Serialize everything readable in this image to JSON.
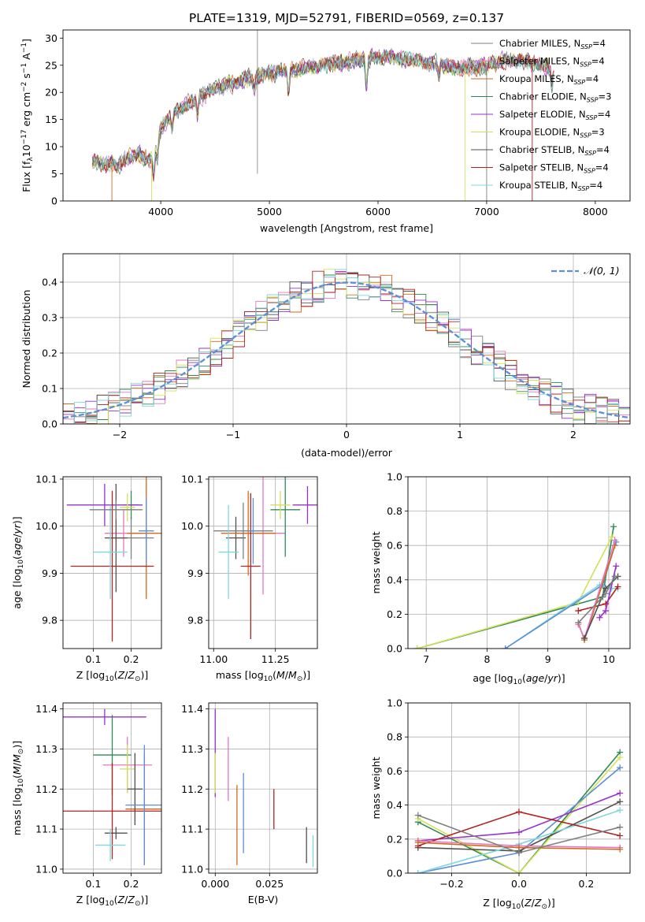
{
  "title": "PLATE=1319, MJD=52791, FIBERID=0569, z=0.137",
  "colors": {
    "chabrier_miles": "#7f7f7f",
    "salpeter_miles": "#e377c2",
    "kroupa_miles": "#d2691e",
    "chabrier_elodie": "#2e8b57",
    "salpeter_elodie": "#9932cc",
    "kroupa_elodie": "#d4e157",
    "chabrier_stelib": "#505050",
    "salpeter_stelib": "#b22222",
    "kroupa_stelib": "#7fd7dc",
    "normal": "#5b8fd9"
  },
  "chart_data": [
    {
      "type": "line",
      "xlabel": "wavelength [Angstrom, rest frame]",
      "ylabel": "Flux [f_λ 10^-17 erg cm^-2 s^-1 A^-1]",
      "ylabel_parts": [
        "Flux [f",
        "λ",
        "10",
        "−17",
        " erg cm",
        "−2",
        " s",
        "−1",
        " A",
        "−1",
        "]"
      ],
      "xlim": [
        3100,
        8320
      ],
      "ylim": [
        0,
        31.5
      ],
      "xticks": [
        4000,
        5000,
        6000,
        7000,
        8000
      ],
      "yticks": [
        0,
        5,
        10,
        15,
        20,
        25,
        30
      ],
      "legend_position": "right",
      "legend": [
        {
          "label": "Chabrier MILES, N",
          "sub": "SSP",
          "suffix": "=4",
          "color": "#7f7f7f"
        },
        {
          "label": "Salpeter MILES, N",
          "sub": "SSP",
          "suffix": "=4",
          "color": "#e377c2"
        },
        {
          "label": "Kroupa MILES, N",
          "sub": "SSP",
          "suffix": "=4",
          "color": "#d2691e"
        },
        {
          "label": "Chabrier ELODIE, N",
          "sub": "SSP",
          "suffix": "=3",
          "color": "#2e8b57"
        },
        {
          "label": "Salpeter ELODIE, N",
          "sub": "SSP",
          "suffix": "=4",
          "color": "#9932cc"
        },
        {
          "label": "Kroupa ELODIE, N",
          "sub": "SSP",
          "suffix": "=3",
          "color": "#d4e157"
        },
        {
          "label": "Chabrier STELIB, N",
          "sub": "SSP",
          "suffix": "=4",
          "color": "#505050"
        },
        {
          "label": "Salpeter STELIB, N",
          "sub": "SSP",
          "suffix": "=4",
          "color": "#b22222"
        },
        {
          "label": "Kroupa STELIB, N",
          "sub": "SSP",
          "suffix": "=4",
          "color": "#7fd7dc"
        }
      ],
      "continuum": {
        "x": [
          3370,
          3500,
          3600,
          3700,
          3800,
          3900,
          3950,
          4000,
          4100,
          4300,
          4500,
          4700,
          4900,
          5100,
          5300,
          5500,
          5800,
          6000,
          6300,
          6600,
          6800,
          7000,
          7200,
          7400,
          7600
        ],
        "y": [
          7.5,
          6.8,
          6.5,
          8,
          8.5,
          7.5,
          9.5,
          13.5,
          16,
          18.5,
          20.5,
          22,
          23,
          23.5,
          24.5,
          25,
          26,
          26.5,
          26,
          25,
          24.5,
          25,
          26,
          25.5,
          24.5
        ]
      }
    },
    {
      "type": "bar",
      "xlabel": "(data-model)/error",
      "ylabel": "Normed distribution",
      "xlim": [
        -2.5,
        2.5
      ],
      "ylim": [
        0,
        0.48
      ],
      "xticks": [
        -2,
        -1,
        0,
        1,
        2
      ],
      "yticks": [
        0.0,
        0.1,
        0.2,
        0.3,
        0.4
      ],
      "legend": "𝒩(0, 1)",
      "legend_position": "top-right",
      "bin_edges": [
        -2.5,
        -2.4,
        -2.3,
        -2.2,
        -2.1,
        -2.0,
        -1.9,
        -1.8,
        -1.7,
        -1.6,
        -1.5,
        -1.4,
        -1.3,
        -1.2,
        -1.1,
        -1.0,
        -0.9,
        -0.8,
        -0.7,
        -0.6,
        -0.5,
        -0.4,
        -0.3,
        -0.2,
        -0.1,
        0.0,
        0.1,
        0.2,
        0.3,
        0.4,
        0.5,
        0.6,
        0.7,
        0.8,
        0.9,
        1.0,
        1.1,
        1.2,
        1.3,
        1.4,
        1.5,
        1.6,
        1.7,
        1.8,
        1.9,
        2.0,
        2.1,
        2.2,
        2.3,
        2.4,
        2.5
      ],
      "normal_curve": {
        "mean": 0,
        "sigma": 1
      }
    },
    {
      "type": "scatter",
      "xlabel": "Z [log10(Z/Z⊙)]",
      "ylabel": "age [log10(age/yr)]",
      "xlim": [
        0.02,
        0.28
      ],
      "ylim": [
        9.74,
        10.105
      ],
      "xticks": [
        0.1,
        0.2
      ],
      "yticks": [
        9.8,
        9.9,
        10.0,
        10.1
      ],
      "points": [
        {
          "x": 0.2,
          "y": 9.975,
          "xerr": 0.06,
          "yerr": 0.045,
          "color": "#7f7f7f"
        },
        {
          "x": 0.18,
          "y": 9.985,
          "xerr": 0.05,
          "yerr": 0.05,
          "color": "#e377c2"
        },
        {
          "x": 0.24,
          "y": 9.985,
          "xerr": 0.05,
          "yerr": 0.14,
          "color": "#d2691e"
        },
        {
          "x": 0.2,
          "y": 10.045,
          "xerr": 0.02,
          "yerr": 0.03,
          "color": "#2e8b57"
        },
        {
          "x": 0.13,
          "y": 10.045,
          "xerr": 0.1,
          "yerr": 0.045,
          "color": "#9932cc"
        },
        {
          "x": 0.19,
          "y": 10.04,
          "xerr": 0.02,
          "yerr": 0.03,
          "color": "#d4e157"
        },
        {
          "x": 0.16,
          "y": 9.975,
          "xerr": 0.03,
          "yerr": 0.115,
          "color": "#505050"
        },
        {
          "x": 0.15,
          "y": 9.915,
          "xerr": 0.11,
          "yerr": 0.16,
          "color": "#b22222"
        },
        {
          "x": 0.145,
          "y": 9.945,
          "xerr": 0.045,
          "yerr": 0.1,
          "color": "#7fd7dc"
        },
        {
          "x": 0.24,
          "y": 9.99,
          "xerr": 0.02,
          "yerr": 0.07,
          "color": "#5b8fd9"
        },
        {
          "x": 0.16,
          "y": 10.035,
          "xerr": 0.07,
          "yerr": 0.02,
          "color": "#7f7f7f"
        }
      ]
    },
    {
      "type": "scatter",
      "xlabel": "mass [log10(M/M⊙)]",
      "ylabel": "",
      "xlim": [
        10.98,
        11.42
      ],
      "ylim": [
        9.74,
        10.105
      ],
      "xticks": [
        11.0,
        11.25
      ],
      "yticks": [
        9.8,
        9.9,
        10.0,
        10.1
      ],
      "points": [
        {
          "x": 11.09,
          "y": 9.975,
          "xerr": 0.04,
          "yerr": 0.045,
          "color": "#505050"
        },
        {
          "x": 11.2,
          "y": 9.985,
          "xerr": 0.09,
          "yerr": 0.13,
          "color": "#e377c2"
        },
        {
          "x": 11.14,
          "y": 9.985,
          "xerr": 0.11,
          "yerr": 0.09,
          "color": "#d2691e"
        },
        {
          "x": 11.29,
          "y": 10.035,
          "xerr": 0.06,
          "yerr": 0.1,
          "color": "#2e8b57"
        },
        {
          "x": 11.38,
          "y": 10.045,
          "xerr": 0.06,
          "yerr": 0.04,
          "color": "#9932cc"
        },
        {
          "x": 11.27,
          "y": 10.045,
          "xerr": 0.04,
          "yerr": 0.03,
          "color": "#d4e157"
        },
        {
          "x": 11.12,
          "y": 9.99,
          "xerr": 0.12,
          "yerr": 0.06,
          "color": "#7f7f7f"
        },
        {
          "x": 11.15,
          "y": 9.915,
          "xerr": 0.04,
          "yerr": 0.155,
          "color": "#b22222"
        },
        {
          "x": 11.06,
          "y": 9.945,
          "xerr": 0.04,
          "yerr": 0.1,
          "color": "#7fd7dc"
        },
        {
          "x": 11.16,
          "y": 9.99,
          "xerr": 0.02,
          "yerr": 0.07,
          "color": "#5b8fd9"
        }
      ]
    },
    {
      "type": "line",
      "xlabel": "age [log10(age/yr)]",
      "ylabel": "mass weight",
      "xlim": [
        6.7,
        10.35
      ],
      "ylim": [
        0,
        1.0
      ],
      "xticks": [
        7,
        8,
        9,
        10
      ],
      "yticks": [
        0.0,
        0.2,
        0.4,
        0.6,
        0.8,
        1.0
      ],
      "series": [
        {
          "color": "#2e8b57",
          "points": [
            [
              6.85,
              0.0
            ],
            [
              9.9,
              0.3
            ],
            [
              10.08,
              0.71
            ]
          ]
        },
        {
          "color": "#d4e157",
          "points": [
            [
              6.85,
              0.0
            ],
            [
              9.5,
              0.27
            ],
            [
              10.05,
              0.65
            ]
          ]
        },
        {
          "color": "#7fd7dc",
          "points": [
            [
              8.3,
              0.0
            ],
            [
              9.85,
              0.37
            ],
            [
              10.05,
              0.35
            ],
            [
              10.15,
              0.35
            ]
          ]
        },
        {
          "color": "#5b8fd9",
          "points": [
            [
              8.3,
              0.0
            ],
            [
              9.9,
              0.37
            ],
            [
              10.12,
              0.62
            ]
          ]
        },
        {
          "color": "#b22222",
          "points": [
            [
              9.5,
              0.22
            ],
            [
              9.95,
              0.26
            ],
            [
              10.15,
              0.36
            ]
          ]
        },
        {
          "color": "#d2691e",
          "points": [
            [
              9.5,
              0.15
            ],
            [
              9.6,
              0.05
            ],
            [
              10.1,
              0.6
            ]
          ]
        },
        {
          "color": "#e377c2",
          "points": [
            [
              9.5,
              0.14
            ],
            [
              9.6,
              0.06
            ],
            [
              10.1,
              0.63
            ]
          ]
        },
        {
          "color": "#9932cc",
          "points": [
            [
              9.85,
              0.18
            ],
            [
              9.95,
              0.22
            ],
            [
              10.12,
              0.48
            ]
          ]
        },
        {
          "color": "#505050",
          "points": [
            [
              9.6,
              0.06
            ],
            [
              9.95,
              0.35
            ],
            [
              10.15,
              0.42
            ]
          ]
        },
        {
          "color": "#7f7f7f",
          "points": [
            [
              9.5,
              0.15
            ],
            [
              9.95,
              0.32
            ],
            [
              10.1,
              0.42
            ]
          ]
        }
      ]
    },
    {
      "type": "scatter",
      "xlabel": "Z [log10(Z/Z⊙)]",
      "ylabel": "mass [log10(M/M⊙)]",
      "xlim": [
        0.02,
        0.28
      ],
      "ylim": [
        10.99,
        11.415
      ],
      "xticks": [
        0.1,
        0.2
      ],
      "yticks": [
        11.0,
        11.1,
        11.2,
        11.3,
        11.4
      ],
      "points": [
        {
          "x": 0.16,
          "y": 11.09,
          "xerr": 0.03,
          "yerr": 0.015,
          "color": "#505050"
        },
        {
          "x": 0.19,
          "y": 11.26,
          "xerr": 0.065,
          "yerr": 0.07,
          "color": "#e377c2"
        },
        {
          "x": 0.235,
          "y": 11.15,
          "xerr": 0.05,
          "yerr": 0.14,
          "color": "#d2691e"
        },
        {
          "x": 0.15,
          "y": 11.285,
          "xerr": 0.05,
          "yerr": 0.1,
          "color": "#2e8b57"
        },
        {
          "x": 0.13,
          "y": 11.38,
          "xerr": 0.11,
          "yerr": 0.02,
          "color": "#9932cc"
        },
        {
          "x": 0.19,
          "y": 11.25,
          "xerr": 0.02,
          "yerr": 0.06,
          "color": "#d4e157"
        },
        {
          "x": 0.21,
          "y": 11.2,
          "xerr": 0.02,
          "yerr": 0.09,
          "color": "#505050"
        },
        {
          "x": 0.15,
          "y": 11.145,
          "xerr": 0.13,
          "yerr": 0.12,
          "color": "#b22222"
        },
        {
          "x": 0.145,
          "y": 11.06,
          "xerr": 0.04,
          "yerr": 0.04,
          "color": "#7fd7dc"
        },
        {
          "x": 0.235,
          "y": 11.16,
          "xerr": 0.05,
          "yerr": 0.15,
          "color": "#5b8fd9"
        }
      ]
    },
    {
      "type": "scatter",
      "xlabel": "E(B-V)",
      "ylabel": "",
      "xlim": [
        -0.003,
        0.047
      ],
      "ylim": [
        10.99,
        11.415
      ],
      "xticks": [
        0.0,
        0.025
      ],
      "yticks": [
        11.0,
        11.1,
        11.2,
        11.3,
        11.4
      ],
      "points": [
        {
          "x": 0.0,
          "y": 11.29,
          "yerr": 0.11,
          "color": "#9932cc"
        },
        {
          "x": 0.0,
          "y": 11.24,
          "yerr": 0.05,
          "color": "#d4e157"
        },
        {
          "x": 0.006,
          "y": 11.25,
          "yerr": 0.08,
          "color": "#e377c2"
        },
        {
          "x": 0.01,
          "y": 11.11,
          "yerr": 0.1,
          "color": "#d2691e"
        },
        {
          "x": 0.013,
          "y": 11.14,
          "yerr": 0.1,
          "color": "#5b8fd9"
        },
        {
          "x": 0.027,
          "y": 11.15,
          "yerr": 0.05,
          "color": "#b22222"
        },
        {
          "x": 0.042,
          "y": 11.06,
          "yerr": 0.045,
          "color": "#505050"
        },
        {
          "x": 0.045,
          "y": 11.045,
          "yerr": 0.04,
          "color": "#7fd7dc"
        }
      ]
    },
    {
      "type": "line",
      "xlabel": "Z [log10(Z/Z⊙)]",
      "ylabel": "mass weight",
      "xlim": [
        -0.33,
        0.33
      ],
      "ylim": [
        0,
        1.0
      ],
      "xticks": [
        -0.2,
        0.0,
        0.2
      ],
      "yticks": [
        0.0,
        0.2,
        0.4,
        0.6,
        0.8,
        1.0
      ],
      "series": [
        {
          "color": "#2e8b57",
          "points": [
            [
              -0.3,
              0.3
            ],
            [
              0.0,
              0.0
            ],
            [
              0.3,
              0.71
            ]
          ]
        },
        {
          "color": "#d4e157",
          "points": [
            [
              -0.3,
              0.32
            ],
            [
              0.0,
              0.0
            ],
            [
              0.3,
              0.68
            ]
          ]
        },
        {
          "color": "#5b8fd9",
          "points": [
            [
              -0.3,
              0.0
            ],
            [
              0.0,
              0.12
            ],
            [
              0.3,
              0.62
            ]
          ]
        },
        {
          "color": "#9932cc",
          "points": [
            [
              -0.3,
              0.19
            ],
            [
              0.0,
              0.24
            ],
            [
              0.3,
              0.47
            ]
          ]
        },
        {
          "color": "#505050",
          "points": [
            [
              -0.3,
              0.15
            ],
            [
              0.0,
              0.13
            ],
            [
              0.3,
              0.42
            ]
          ]
        },
        {
          "color": "#7fd7dc",
          "points": [
            [
              -0.3,
              0.0
            ],
            [
              0.0,
              0.17
            ],
            [
              0.3,
              0.37
            ]
          ]
        },
        {
          "color": "#b22222",
          "points": [
            [
              -0.3,
              0.16
            ],
            [
              0.0,
              0.36
            ],
            [
              0.3,
              0.22
            ]
          ]
        },
        {
          "color": "#e377c2",
          "points": [
            [
              -0.3,
              0.19
            ],
            [
              0.0,
              0.16
            ],
            [
              0.3,
              0.15
            ]
          ]
        },
        {
          "color": "#d2691e",
          "points": [
            [
              -0.3,
              0.18
            ],
            [
              0.0,
              0.15
            ],
            [
              0.3,
              0.14
            ]
          ]
        },
        {
          "color": "#7f7f7f",
          "points": [
            [
              -0.3,
              0.34
            ],
            [
              0.0,
              0.12
            ],
            [
              0.3,
              0.27
            ]
          ]
        }
      ]
    }
  ]
}
